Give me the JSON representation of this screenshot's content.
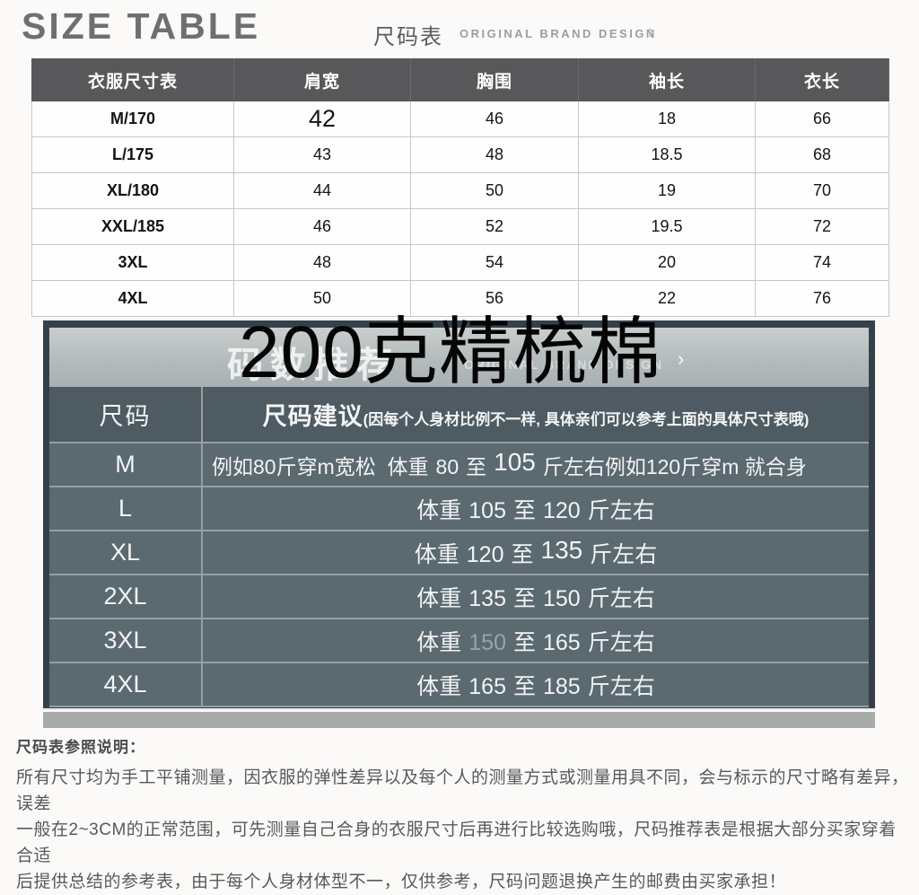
{
  "header": {
    "title": "SIZE TABLE",
    "subtitle": "尺码表",
    "brand": "ORIGINAL BRAND DESIGN",
    "chevron": "›"
  },
  "size_table": {
    "columns": [
      "衣服尺寸表",
      "肩宽",
      "胸围",
      "袖长",
      "衣长"
    ],
    "rows": [
      {
        "cells": [
          "M/170",
          "42",
          "46",
          "18",
          "66"
        ]
      },
      {
        "cells": [
          "L/175",
          "43",
          "48",
          "18.5",
          "68"
        ]
      },
      {
        "cells": [
          "XL/180",
          "44",
          "50",
          "19",
          "70"
        ]
      },
      {
        "cells": [
          "XXL/185",
          "46",
          "52",
          "19.5",
          "72"
        ]
      },
      {
        "cells": [
          "3XL",
          "48",
          "54",
          "20",
          "74"
        ]
      },
      {
        "cells": [
          "4XL",
          "50",
          "56",
          "22",
          "76"
        ]
      }
    ]
  },
  "overlay": {
    "text": "200克精梳棉"
  },
  "recommend": {
    "band": {
      "title": "码数推荐",
      "brand": "ORIGINAL BRAND DESIGN",
      "chevron": "›"
    },
    "table": {
      "size_header": "尺码",
      "advice_title": "尺码建议",
      "advice_note": "(因每个人身材比例不一样, 具体亲们可以参考上面的具体尺寸表哦)"
    },
    "rows": [
      {
        "size": "M",
        "pre": "例如80斤穿m宽松  体重",
        "from": "80",
        "mid": "至",
        "to": "105",
        "post": "斤左右例如120斤穿m 就合身"
      },
      {
        "size": "L",
        "pre": "体重",
        "from": "105",
        "mid": "至",
        "to": "120",
        "post": "斤左右"
      },
      {
        "size": "XL",
        "pre": "体重",
        "from": "120",
        "mid": "至",
        "to": "135",
        "post": "斤左右"
      },
      {
        "size": "2XL",
        "pre": "体重",
        "from": "135",
        "mid": "至",
        "to": "150",
        "post": "斤左右"
      },
      {
        "size": "3XL",
        "pre": "体重",
        "from": "150",
        "mid": "至",
        "to": "165",
        "post": "斤左右"
      },
      {
        "size": "4XL",
        "pre": "体重",
        "from": "165",
        "mid": "至",
        "to": "185",
        "post": "斤左右"
      }
    ]
  },
  "notes": {
    "title": "尺码表参照说明：",
    "lines": [
      "所有尺寸均为手工平铺测量，因衣服的弹性差异以及每个人的测量方式或测量用具不同，会与标示的尺寸略有差异，误差",
      "一般在2~3CM的正常范围，可先测量自己合身的衣服尺寸后再进行比较选购哦，尺码推荐表是根据大部分买家穿着合适",
      "后提供总结的参考表，由于每个人身材体型不一，仅供参考，尺码问题退换产生的邮费由买家承担！"
    ]
  },
  "colors": {
    "page_bg": "#fbfaf8",
    "table1_header_bg": "#58585a",
    "section_bg": "#35414a",
    "band_bg": "#b6bdbd",
    "table2_header_bg": "#4e5b62",
    "table2_row_bg": "#5b6970",
    "row_separator": "#96a0a2",
    "overlay_text": "#050505"
  }
}
